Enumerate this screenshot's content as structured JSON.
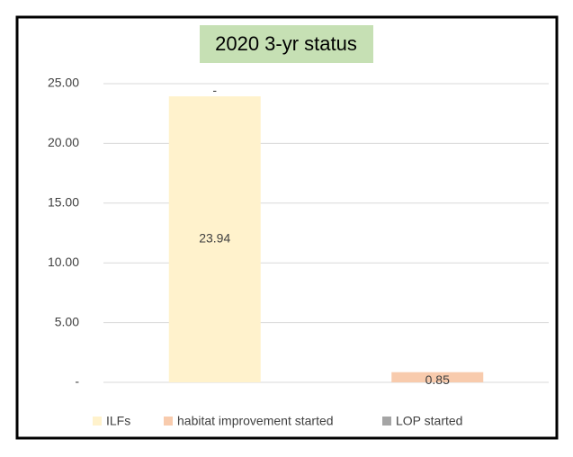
{
  "chart_data": {
    "type": "stacked_bar",
    "title": "2020 3-yr status",
    "categories": [
      null,
      null
    ],
    "series": [
      {
        "name": "ILFs",
        "color": "#fff2cc",
        "values": [
          23.94,
          null
        ]
      },
      {
        "name": "habitat improvement started",
        "color": "#f8cbad",
        "values": [
          null,
          0.85
        ]
      },
      {
        "name": "LOP started",
        "color": "#a5a5a5",
        "values": [
          0,
          null
        ],
        "value_labels": [
          "-",
          null
        ]
      }
    ],
    "ylim": [
      0,
      25
    ],
    "yticks": [
      {
        "value": 0,
        "label": "-"
      },
      {
        "value": 5,
        "label": "5.00"
      },
      {
        "value": 10,
        "label": "10.00"
      },
      {
        "value": 15,
        "label": "15.00"
      },
      {
        "value": 20,
        "label": "20.00"
      },
      {
        "value": 25,
        "label": "25.00"
      }
    ],
    "grid": true,
    "legend": "bottom"
  }
}
